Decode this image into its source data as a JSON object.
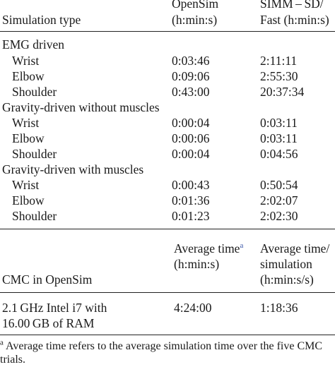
{
  "table1": {
    "header": {
      "col1": "Simulation type",
      "col2_line1": "OpenSim",
      "col2_line2": "(h:min:s)",
      "col3_line1": "SIMM – SD/",
      "col3_line2": "Fast (h:min:s)"
    },
    "groups": [
      {
        "label": "EMG driven",
        "rows": [
          {
            "name": "Wrist",
            "opensim": "0:03:46",
            "simm": "2:11:11"
          },
          {
            "name": "Elbow",
            "opensim": "0:09:06",
            "simm": "2:55:30"
          },
          {
            "name": "Shoulder",
            "opensim": "0:43:00",
            "simm": "20:37:34"
          }
        ]
      },
      {
        "label": "Gravity-driven without muscles",
        "rows": [
          {
            "name": "Wrist",
            "opensim": "0:00:04",
            "simm": "0:03:11"
          },
          {
            "name": "Elbow",
            "opensim": "0:00:06",
            "simm": "0:03:11"
          },
          {
            "name": "Shoulder",
            "opensim": "0:00:04",
            "simm": "0:04:56"
          }
        ]
      },
      {
        "label": "Gravity-driven with muscles",
        "rows": [
          {
            "name": "Wrist",
            "opensim": "0:00:43",
            "simm": "0:50:54"
          },
          {
            "name": "Elbow",
            "opensim": "0:01:36",
            "simm": "2:02:07"
          },
          {
            "name": "Shoulder",
            "opensim": "0:01:23",
            "simm": "2:02:30"
          }
        ]
      }
    ]
  },
  "table2": {
    "header": {
      "col1": "CMC in OpenSim",
      "col2_line1": "Average time",
      "col2_sup": "a",
      "col2_line2": "(h:min:s)",
      "col3_line1": "Average time/",
      "col3_line2": "simulation",
      "col3_line3": "(h:min:s/s)"
    },
    "row": {
      "label_line1": "2.1 GHz Intel i7 with",
      "label_line2": "16.00 GB of RAM",
      "average_time": "4:24:00",
      "per_simulation": "1:18:36"
    }
  },
  "footnote": {
    "marker": "a",
    "line1": "Average time refers to the average simulation time over the five CMC",
    "line2": "trials."
  }
}
